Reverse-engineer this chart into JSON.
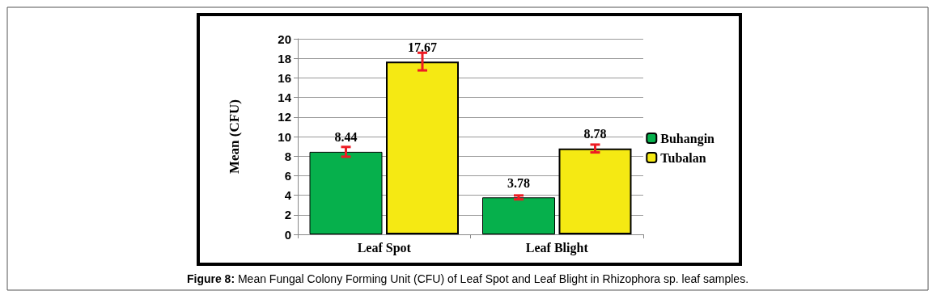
{
  "chart_data": {
    "type": "bar",
    "ylabel": "Mean (CFU)",
    "categories": [
      "Leaf Spot",
      "Leaf Blight"
    ],
    "series": [
      {
        "name": "Buhangin",
        "color": "#06b04c",
        "values": [
          8.44,
          3.78
        ],
        "errors": [
          0.5,
          0.2
        ]
      },
      {
        "name": "Tubalan",
        "color": "#f5e913",
        "values": [
          17.67,
          8.78
        ],
        "errors": [
          0.9,
          0.4
        ]
      }
    ],
    "ylim": [
      0,
      20
    ],
    "yticks": [
      0,
      2,
      4,
      6,
      8,
      10,
      12,
      14,
      16,
      18,
      20
    ],
    "grid": "y",
    "legend": "right",
    "data_labels": true,
    "annotations": [
      "Figure 8: Mean Fungal Colony Forming Unit (CFU) of Leaf Spot and Leaf Blight in Rhizophora sp. leaf samples."
    ]
  }
}
